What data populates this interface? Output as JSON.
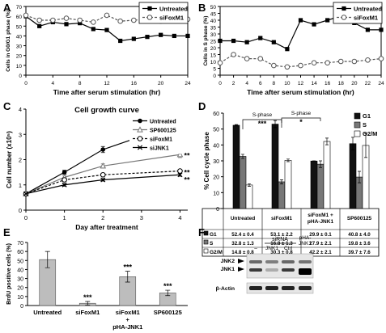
{
  "panel_labels": {
    "A": "A",
    "B": "B",
    "C": "C",
    "D": "D",
    "E": "E",
    "F": "F"
  },
  "chart_data": [
    {
      "id": "A",
      "type": "line",
      "ylabel": "Cells in G0/G1 phase (%)",
      "xlabel": "Time after serum stimulation (hr)",
      "x": [
        0,
        2,
        4,
        6,
        8,
        10,
        12,
        14,
        16,
        18,
        20,
        22,
        24
      ],
      "xticks": [
        "0",
        "4",
        "8",
        "12",
        "16",
        "20",
        "24"
      ],
      "xtick_values": [
        0,
        4,
        8,
        12,
        16,
        20,
        24
      ],
      "yticks": [
        "0",
        "10",
        "20",
        "30",
        "40",
        "50",
        "60",
        "70"
      ],
      "xlim": [
        0,
        24
      ],
      "ylim": [
        0,
        70
      ],
      "legend_position": "top-right",
      "series": [
        {
          "name": "Untreated",
          "values": [
            60,
            50,
            54,
            52,
            53,
            47,
            46,
            35,
            37,
            39,
            41,
            40,
            40
          ],
          "color": "#000000",
          "dashed": false,
          "marker": "square-filled"
        },
        {
          "name": "siFoxM1",
          "values": [
            61,
            56,
            56,
            58,
            56,
            54,
            61,
            55,
            56,
            57,
            55,
            56,
            57
          ],
          "color": "#555555",
          "dashed": true,
          "marker": "circle-open"
        }
      ]
    },
    {
      "id": "B",
      "type": "line",
      "ylabel": "Cells in S phase (%)",
      "xlabel": "Time after serum stimulation (hr)",
      "x": [
        0,
        2,
        4,
        6,
        8,
        10,
        12,
        14,
        16,
        18,
        20,
        22,
        24
      ],
      "xticks": [
        "0",
        "2",
        "4",
        "6",
        "8",
        "10",
        "12",
        "14",
        "16",
        "18",
        "20",
        "22",
        "24"
      ],
      "xtick_values": [
        0,
        2,
        4,
        6,
        8,
        10,
        12,
        14,
        16,
        18,
        20,
        22,
        24
      ],
      "yticks": [
        "0",
        "5",
        "10",
        "15",
        "20",
        "25",
        "30",
        "35",
        "40",
        "45",
        "50"
      ],
      "xlim": [
        0,
        24
      ],
      "ylim": [
        0,
        50
      ],
      "legend_position": "top-right",
      "series": [
        {
          "name": "Untreated",
          "values": [
            25,
            25,
            24,
            27,
            24,
            19,
            40,
            37,
            40,
            43,
            38,
            33,
            33
          ],
          "color": "#000000",
          "dashed": false,
          "marker": "square-filled"
        },
        {
          "name": "siFoxM1",
          "values": [
            9,
            15,
            12,
            12,
            7,
            6,
            7,
            9,
            9,
            10,
            10,
            11,
            12
          ],
          "color": "#555555",
          "dashed": true,
          "marker": "circle-open"
        }
      ]
    },
    {
      "id": "C",
      "type": "line",
      "title": "Cell growth curve",
      "ylabel": "Cell number (x10⁵)",
      "xlabel": "Day after treatment",
      "x": [
        0,
        1,
        2,
        4
      ],
      "xticks": [
        "0",
        "1",
        "2",
        "3",
        "4"
      ],
      "xtick_values": [
        0,
        1,
        2,
        3,
        4
      ],
      "yticks": [
        "0",
        "1",
        "2",
        "3",
        "4"
      ],
      "xlim": [
        0,
        4.2
      ],
      "ylim": [
        0,
        4
      ],
      "legend_position": "top-right",
      "series": [
        {
          "name": "Untreated",
          "values": [
            0.65,
            1.5,
            2.4,
            3.45
          ],
          "errors": [
            0,
            0.08,
            0.12,
            0.22
          ],
          "color": "#000000",
          "dashed": false,
          "marker": "circle-filled"
        },
        {
          "name": "SP600125",
          "values": [
            0.65,
            1.3,
            1.75,
            2.2
          ],
          "errors": [
            0,
            0.06,
            0.08,
            0.12
          ],
          "color": "#777777",
          "dashed": false,
          "marker": "triangle-open"
        },
        {
          "name": "siFoxM1",
          "values": [
            0.65,
            1.2,
            1.4,
            1.55
          ],
          "errors": [
            0,
            0.05,
            0.06,
            0.06
          ],
          "color": "#000000",
          "dashed": true,
          "marker": "circle-open"
        },
        {
          "name": "siJNK1",
          "values": [
            0.65,
            1.0,
            1.2,
            1.4
          ],
          "errors": [
            0,
            0.05,
            0.05,
            0.06
          ],
          "color": "#000000",
          "dashed": false,
          "marker": "x"
        }
      ],
      "annotations": [
        "**",
        "**",
        "**"
      ]
    },
    {
      "id": "D",
      "type": "bar",
      "ylabel": "% Cell cycle phase",
      "categories": [
        "Untreated",
        "siFoxM1",
        "siFoxM1 +\npHA-JNK1",
        "SP600125"
      ],
      "yticks": [
        "0",
        "10",
        "20",
        "30",
        "40",
        "50",
        "60"
      ],
      "ylim": [
        0,
        60
      ],
      "legend_position": "top-right",
      "series": [
        {
          "name": "G1",
          "values": [
            52.4,
            53.1,
            29.9,
            40.8
          ],
          "errors": [
            0.4,
            2.2,
            0.1,
            4.0
          ],
          "color": "#111111"
        },
        {
          "name": "S",
          "values": [
            32.8,
            16.8,
            27.9,
            19.8
          ],
          "errors": [
            1.3,
            1.3,
            2.1,
            3.6
          ],
          "color": "#777777"
        },
        {
          "name": "G2/M",
          "values": [
            14.8,
            30.3,
            42.2,
            39.7
          ],
          "errors": [
            0.8,
            0.8,
            2.1,
            7.6
          ],
          "color": "#ffffff"
        }
      ],
      "brackets": [
        {
          "label": "S-phase",
          "stars": "***"
        },
        {
          "label": "S-phase",
          "stars": "*"
        }
      ],
      "table_rows": [
        {
          "key": "G1",
          "cells": [
            "52.4 ± 0.4",
            "53.1 ± 2.2",
            "29.9 ± 0.1",
            "40.8 ± 4.0"
          ]
        },
        {
          "key": "S",
          "cells": [
            "32.8 ± 1.3",
            "16.8 ± 1.3",
            "27.9 ± 2.1",
            "19.8 ± 3.6"
          ]
        },
        {
          "key": "G2/M",
          "cells": [
            "14.8 ± 0.8",
            "30.3 ± 0.8",
            "42.2 ± 2.1",
            "39.7 ± 7.6"
          ]
        }
      ]
    },
    {
      "id": "E",
      "type": "bar",
      "ylabel": "BrdU positive cells (%)",
      "categories": [
        "Untreated",
        "siFoxM1",
        "siFoxM1\n+\npHA-JNK1",
        "SP600125"
      ],
      "values": [
        51,
        2.5,
        32,
        14
      ],
      "errors": [
        9,
        2,
        6,
        3
      ],
      "stars": [
        "",
        "***",
        "***",
        "***"
      ],
      "yticks": [
        "0",
        "10",
        "20",
        "30",
        "40",
        "50",
        "60",
        "70"
      ],
      "ylim": [
        0,
        70
      ],
      "color": "#bdbdbd"
    }
  ],
  "blot": {
    "header_group": "siRNA",
    "lanes": [
      "–",
      "JNK1",
      "Ctrl",
      "pHA-\nJNK1"
    ],
    "row_labels": [
      "JNK2",
      "JNK1",
      "β-Actin"
    ]
  }
}
